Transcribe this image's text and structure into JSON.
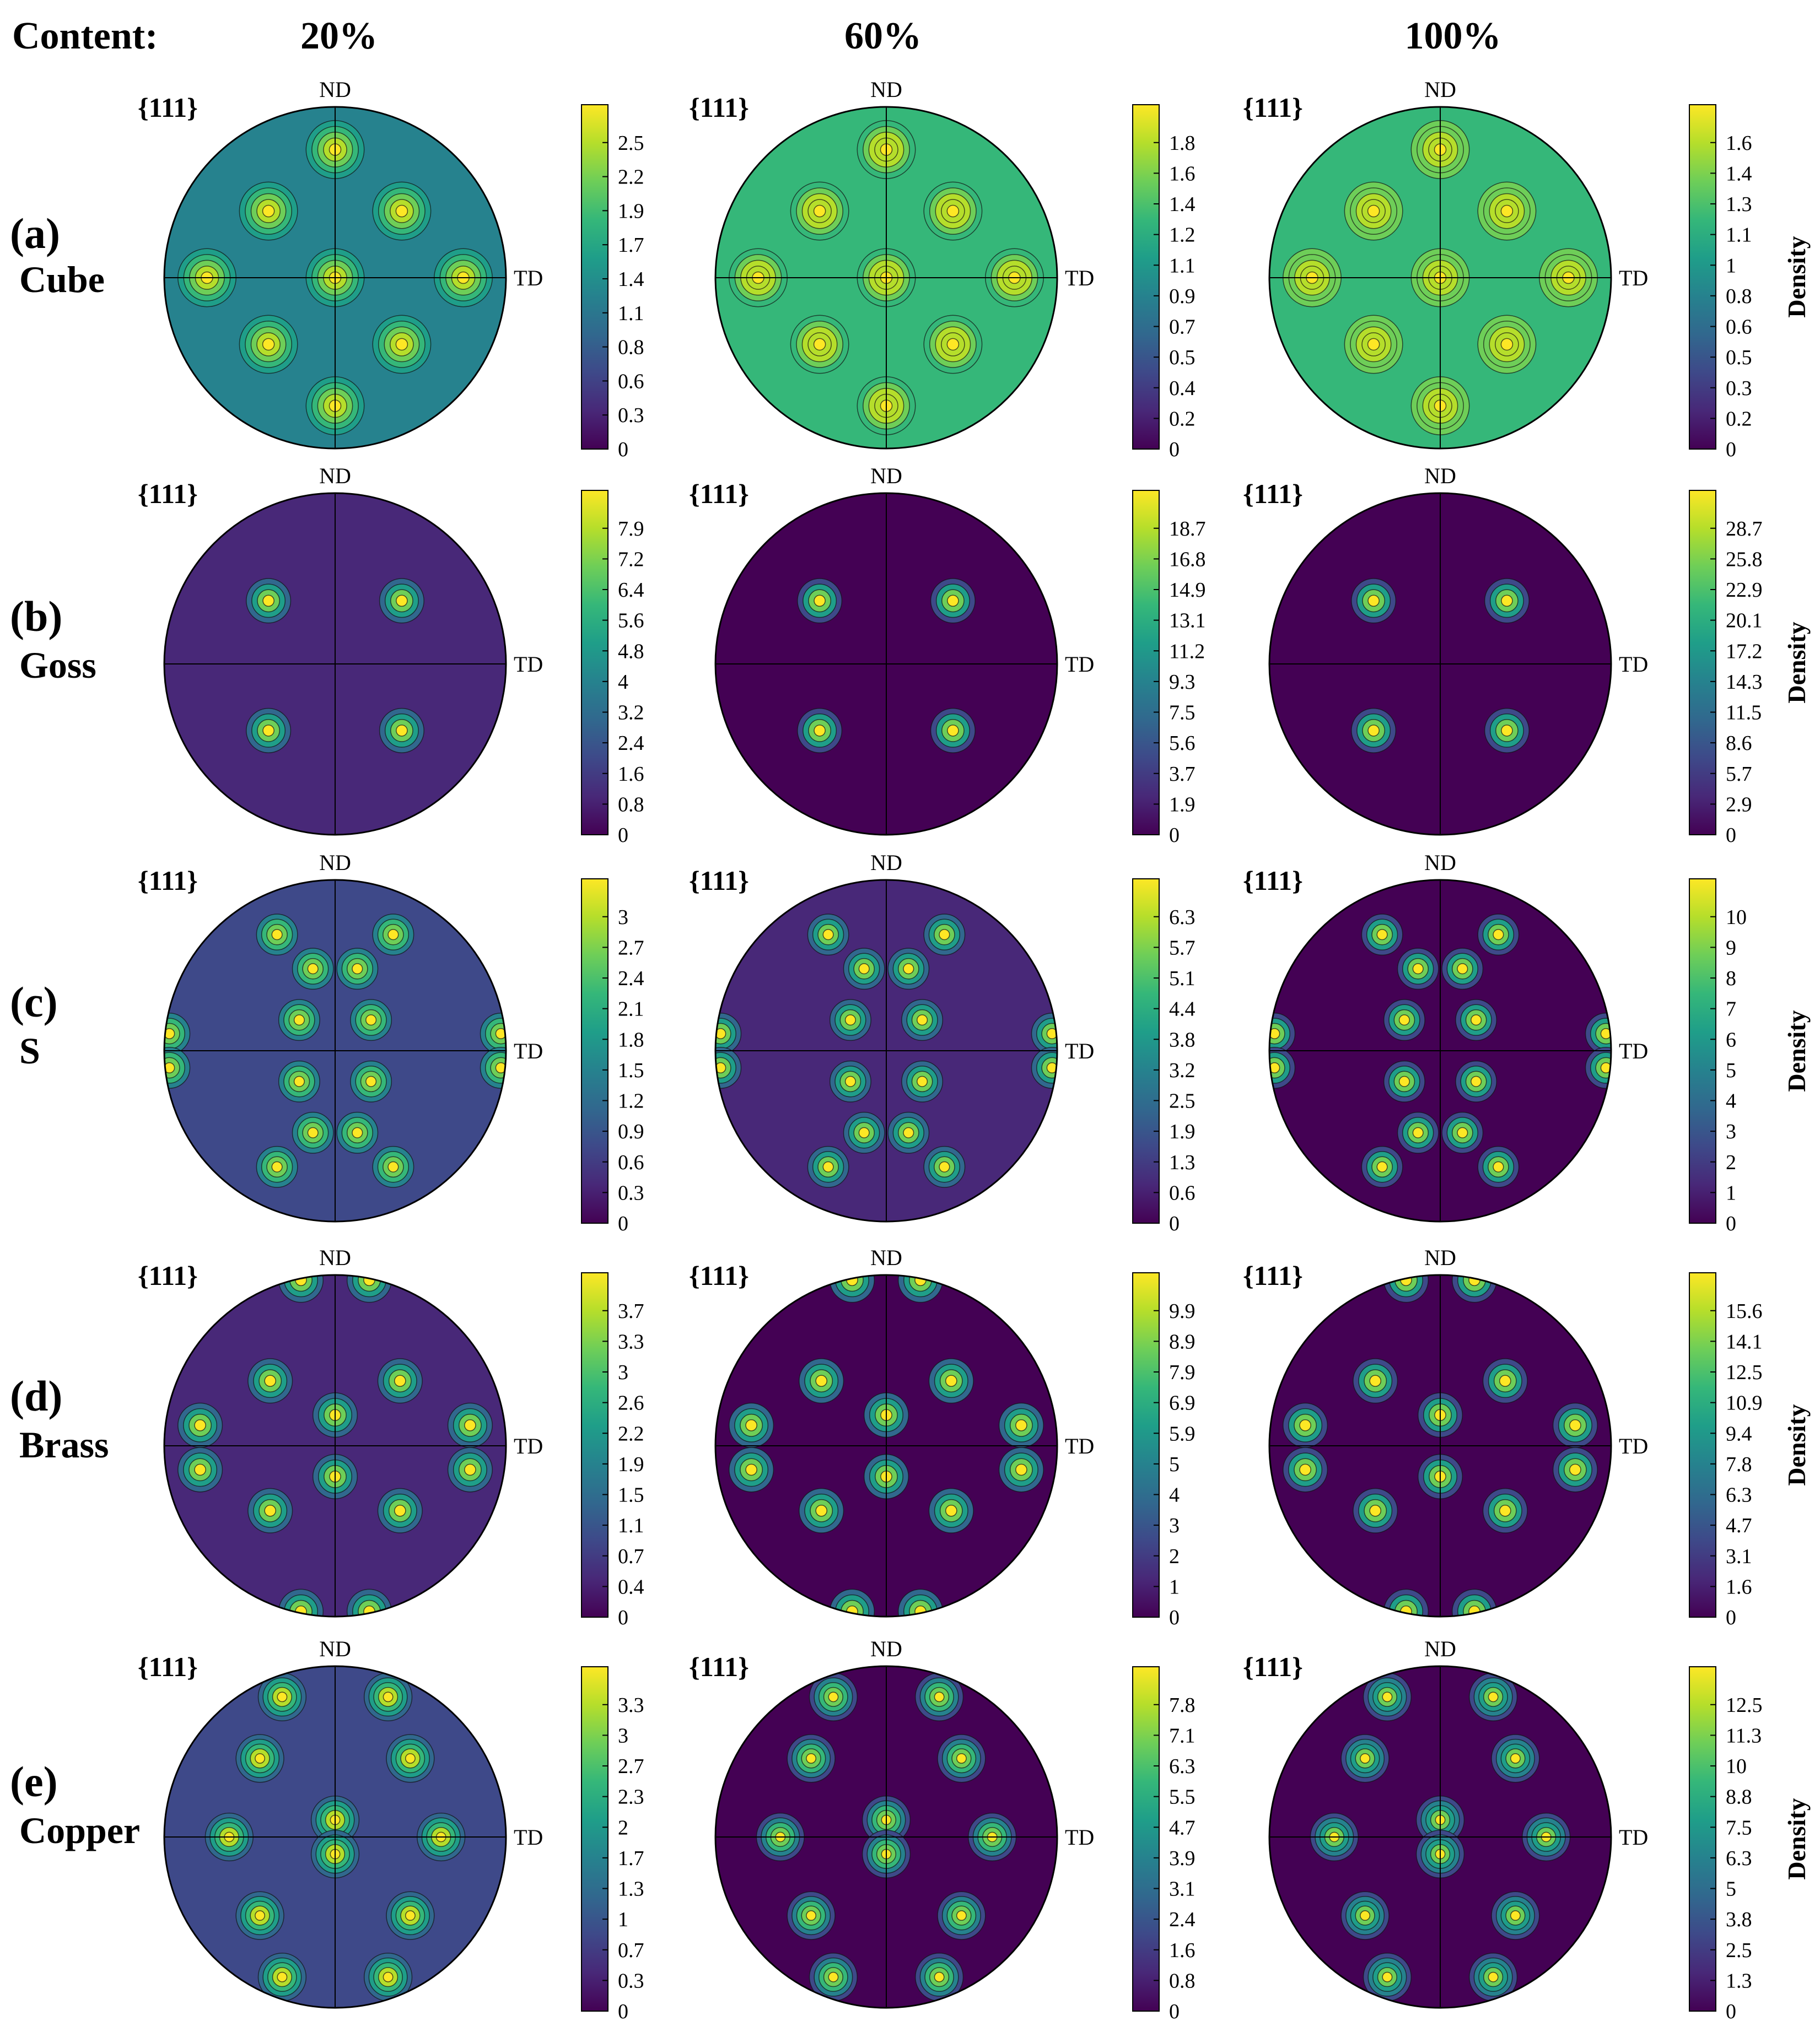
{
  "header": {
    "label": "Content:",
    "columns": [
      "20%",
      "60%",
      "100%"
    ]
  },
  "pole_figure": {
    "family": "{111}",
    "nd_label": "ND",
    "td_label": "TD"
  },
  "colorbar_label": "Density",
  "colormap": [
    "#440154",
    "#482878",
    "#3e4989",
    "#31688e",
    "#26828e",
    "#1f9e89",
    "#35b779",
    "#6ece58",
    "#b5de2b",
    "#fde725"
  ],
  "rows": [
    {
      "id": "(a)",
      "name": "Cube"
    },
    {
      "id": "(b)",
      "name": "Goss"
    },
    {
      "id": "(c)",
      "name": "S"
    },
    {
      "id": "(d)",
      "name": "Brass"
    },
    {
      "id": "(e)",
      "name": "Copper"
    }
  ],
  "chart_data": [
    {
      "type": "heatmap",
      "texture": "Cube",
      "content": "20%",
      "background_level": 0.48,
      "colorbar_ticks": [
        "2.5",
        "2.2",
        "1.9",
        "1.7",
        "1.4",
        "1.1",
        "0.8",
        "0.6",
        "0.3",
        "0"
      ]
    },
    {
      "type": "heatmap",
      "texture": "Cube",
      "content": "60%",
      "background_level": 0.62,
      "colorbar_ticks": [
        "1.8",
        "1.6",
        "1.4",
        "1.2",
        "1.1",
        "0.9",
        "0.7",
        "0.5",
        "0.4",
        "0.2",
        "0"
      ]
    },
    {
      "type": "heatmap",
      "texture": "Cube",
      "content": "100%",
      "background_level": 0.7,
      "colorbar_ticks": [
        "1.6",
        "1.4",
        "1.3",
        "1.1",
        "1",
        "0.8",
        "0.6",
        "0.5",
        "0.3",
        "0.2",
        "0"
      ],
      "show_density_label": true
    },
    {
      "type": "heatmap",
      "texture": "Goss",
      "content": "20%",
      "background_level": 0.08,
      "colorbar_ticks": [
        "7.9",
        "7.2",
        "6.4",
        "5.6",
        "4.8",
        "4",
        "3.2",
        "2.4",
        "1.6",
        "0.8",
        "0"
      ]
    },
    {
      "type": "heatmap",
      "texture": "Goss",
      "content": "60%",
      "background_level": 0.03,
      "colorbar_ticks": [
        "18.7",
        "16.8",
        "14.9",
        "13.1",
        "11.2",
        "9.3",
        "7.5",
        "5.6",
        "3.7",
        "1.9",
        "0"
      ]
    },
    {
      "type": "heatmap",
      "texture": "Goss",
      "content": "100%",
      "background_level": 0.0,
      "colorbar_ticks": [
        "28.7",
        "25.8",
        "22.9",
        "20.1",
        "17.2",
        "14.3",
        "11.5",
        "8.6",
        "5.7",
        "2.9",
        "0"
      ],
      "show_density_label": true
    },
    {
      "type": "heatmap",
      "texture": "S",
      "content": "20%",
      "background_level": 0.25,
      "colorbar_ticks": [
        "3",
        "2.7",
        "2.4",
        "2.1",
        "1.8",
        "1.5",
        "1.2",
        "0.9",
        "0.6",
        "0.3",
        "0"
      ]
    },
    {
      "type": "heatmap",
      "texture": "S",
      "content": "60%",
      "background_level": 0.08,
      "colorbar_ticks": [
        "6.3",
        "5.7",
        "5.1",
        "4.4",
        "3.8",
        "3.2",
        "2.5",
        "1.9",
        "1.3",
        "0.6",
        "0"
      ]
    },
    {
      "type": "heatmap",
      "texture": "S",
      "content": "100%",
      "background_level": 0.02,
      "colorbar_ticks": [
        "10",
        "9",
        "8",
        "7",
        "6",
        "5",
        "4",
        "3",
        "2",
        "1",
        "0"
      ],
      "show_density_label": true
    },
    {
      "type": "heatmap",
      "texture": "Brass",
      "content": "20%",
      "background_level": 0.15,
      "colorbar_ticks": [
        "3.7",
        "3.3",
        "3",
        "2.6",
        "2.2",
        "1.9",
        "1.5",
        "1.1",
        "0.7",
        "0.4",
        "0"
      ]
    },
    {
      "type": "heatmap",
      "texture": "Brass",
      "content": "60%",
      "background_level": 0.04,
      "colorbar_ticks": [
        "9.9",
        "8.9",
        "7.9",
        "6.9",
        "5.9",
        "5",
        "4",
        "3",
        "2",
        "1",
        "0"
      ]
    },
    {
      "type": "heatmap",
      "texture": "Brass",
      "content": "100%",
      "background_level": 0.01,
      "colorbar_ticks": [
        "15.6",
        "14.1",
        "12.5",
        "10.9",
        "9.4",
        "7.8",
        "6.3",
        "4.7",
        "3.1",
        "1.6",
        "0"
      ],
      "show_density_label": true
    },
    {
      "type": "heatmap",
      "texture": "Copper",
      "content": "20%",
      "background_level": 0.18,
      "colorbar_ticks": [
        "3.3",
        "3",
        "2.7",
        "2.3",
        "2",
        "1.7",
        "1.3",
        "1",
        "0.7",
        "0.3",
        "0"
      ]
    },
    {
      "type": "heatmap",
      "texture": "Copper",
      "content": "60%",
      "background_level": 0.05,
      "colorbar_ticks": [
        "7.8",
        "7.1",
        "6.3",
        "5.5",
        "4.7",
        "3.9",
        "3.1",
        "2.4",
        "1.6",
        "0.8",
        "0"
      ]
    },
    {
      "type": "heatmap",
      "texture": "Copper",
      "content": "100%",
      "background_level": 0.01,
      "colorbar_ticks": [
        "12.5",
        "11.3",
        "10",
        "8.8",
        "7.5",
        "6.3",
        "5",
        "3.8",
        "2.5",
        "1.3",
        "0"
      ],
      "show_density_label": true
    }
  ]
}
